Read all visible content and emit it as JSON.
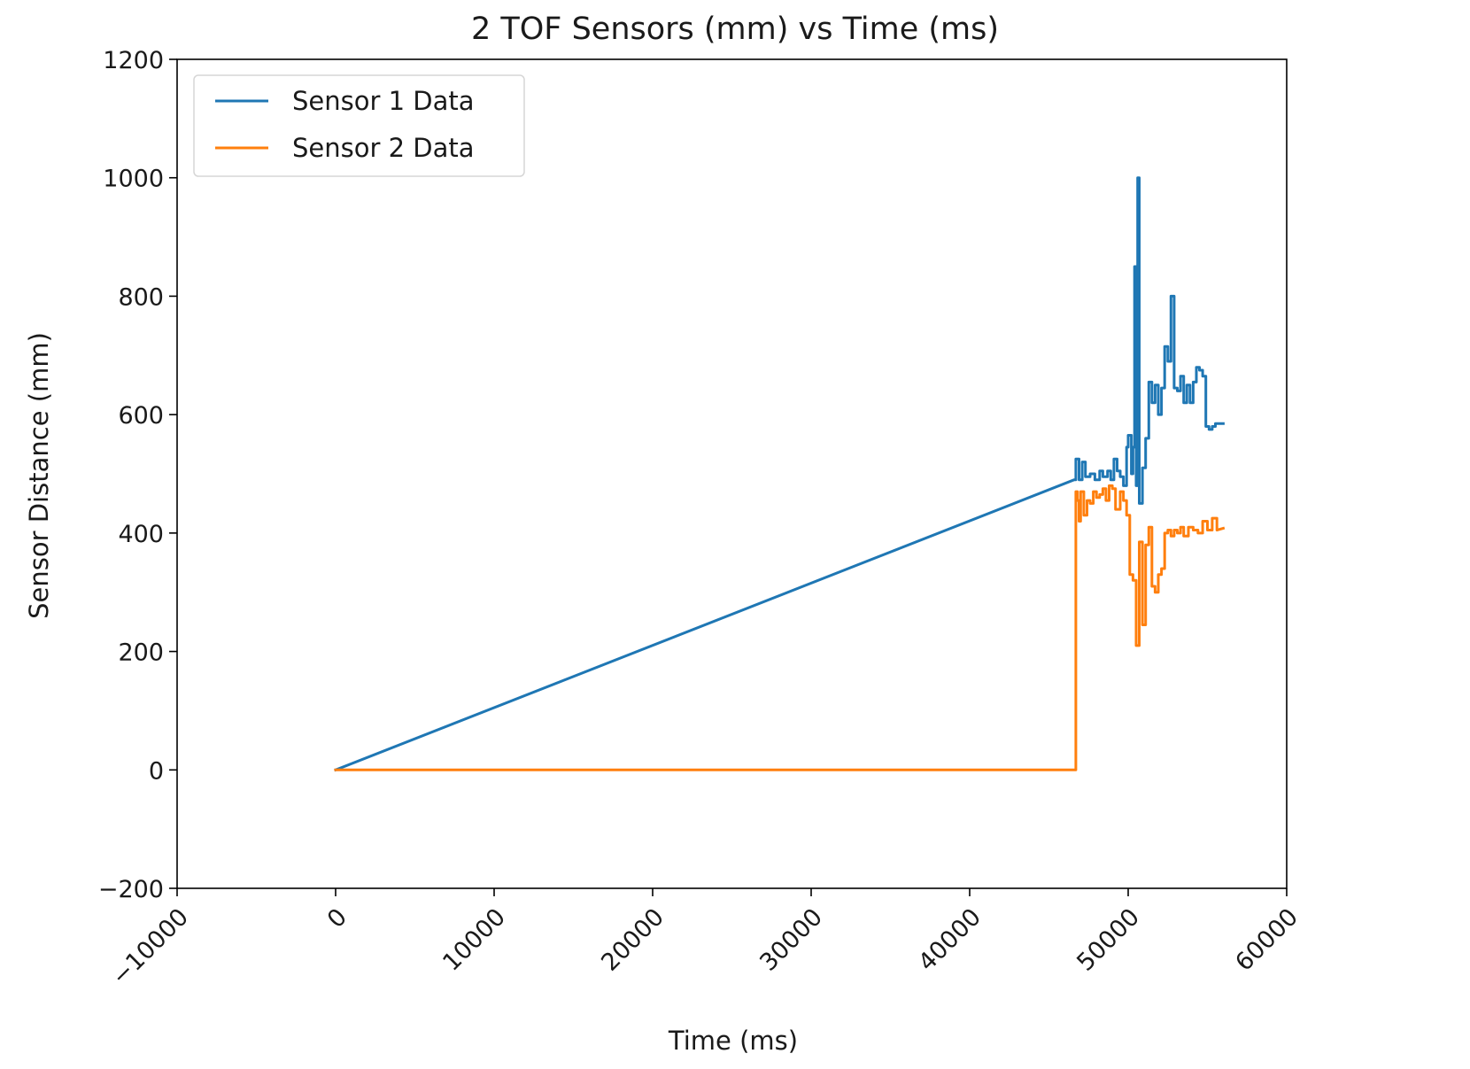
{
  "chart_data": {
    "type": "line",
    "title": "2 TOF Sensors (mm) vs Time (ms)",
    "xlabel": "Time (ms)",
    "ylabel": "Sensor Distance (mm)",
    "xlim": [
      -10000,
      60000
    ],
    "ylim": [
      -200,
      1200
    ],
    "xticks": [
      -10000,
      0,
      10000,
      20000,
      30000,
      40000,
      50000,
      60000
    ],
    "xtick_labels": [
      "−10000",
      "0",
      "10000",
      "20000",
      "30000",
      "40000",
      "50000",
      "60000"
    ],
    "yticks": [
      -200,
      0,
      200,
      400,
      600,
      800,
      1000,
      1200
    ],
    "ytick_labels": [
      "−200",
      "0",
      "200",
      "400",
      "600",
      "800",
      "1000",
      "1200"
    ],
    "grid": false,
    "legend_position": "top-left",
    "series": [
      {
        "name": "Sensor 1 Data",
        "color": "#1f77b4",
        "x": [
          0,
          46600,
          46700,
          46700,
          46900,
          46900,
          47100,
          47100,
          47300,
          47300,
          47600,
          47600,
          47900,
          47900,
          48200,
          48200,
          48400,
          48400,
          48700,
          48700,
          48900,
          48900,
          49100,
          49100,
          49300,
          49300,
          49500,
          49500,
          49700,
          49700,
          49900,
          49900,
          50000,
          50000,
          50200,
          50200,
          50300,
          50300,
          50400,
          50400,
          50500,
          50500,
          50600,
          50600,
          50700,
          50700,
          50900,
          50900,
          51100,
          51100,
          51300,
          51300,
          51500,
          51500,
          51700,
          51700,
          51900,
          51900,
          52100,
          52100,
          52300,
          52300,
          52500,
          52500,
          52700,
          52700,
          52900,
          52900,
          53100,
          53100,
          53300,
          53300,
          53500,
          53500,
          53700,
          53700,
          53900,
          53900,
          54100,
          54100,
          54300,
          54300,
          54500,
          54500,
          54700,
          54700,
          54900,
          54900,
          55100,
          55100,
          55300,
          55300,
          55500,
          55500,
          56000
        ],
        "y": [
          0,
          490,
          490,
          525,
          525,
          490,
          490,
          520,
          520,
          495,
          495,
          500,
          500,
          490,
          490,
          505,
          505,
          495,
          495,
          505,
          505,
          490,
          490,
          525,
          525,
          505,
          505,
          495,
          495,
          480,
          480,
          545,
          545,
          565,
          565,
          500,
          500,
          545,
          545,
          850,
          850,
          480,
          480,
          1000,
          1000,
          450,
          450,
          510,
          510,
          560,
          560,
          655,
          655,
          620,
          620,
          650,
          650,
          600,
          600,
          645,
          645,
          715,
          715,
          690,
          690,
          800,
          800,
          645,
          645,
          640,
          640,
          665,
          665,
          620,
          620,
          650,
          650,
          620,
          620,
          655,
          655,
          680,
          680,
          675,
          675,
          665,
          665,
          580,
          580,
          575,
          575,
          580,
          580,
          585,
          585
        ]
      },
      {
        "name": "Sensor 2 Data",
        "color": "#ff7f0e",
        "x": [
          0,
          46100,
          46700,
          46700,
          46800,
          46800,
          46900,
          46900,
          47000,
          47000,
          47200,
          47200,
          47400,
          47400,
          47600,
          47600,
          47800,
          47800,
          48000,
          48000,
          48200,
          48200,
          48400,
          48400,
          48600,
          48600,
          48800,
          48800,
          49000,
          49000,
          49200,
          49200,
          49500,
          49500,
          49700,
          49700,
          49900,
          49900,
          50100,
          50100,
          50300,
          50300,
          50500,
          50500,
          50700,
          50700,
          50900,
          50900,
          51100,
          51100,
          51300,
          51300,
          51500,
          51500,
          51700,
          51700,
          51900,
          51900,
          52100,
          52100,
          52300,
          52300,
          52500,
          52500,
          52700,
          52700,
          52900,
          52900,
          53100,
          53100,
          53300,
          53300,
          53500,
          53500,
          53800,
          53800,
          54100,
          54100,
          54400,
          54400,
          54700,
          54700,
          55000,
          55000,
          55300,
          55300,
          55600,
          55600,
          56000
        ],
        "y": [
          0,
          0,
          0,
          470,
          470,
          455,
          455,
          420,
          420,
          470,
          470,
          430,
          430,
          455,
          455,
          450,
          450,
          470,
          470,
          460,
          460,
          465,
          465,
          475,
          475,
          455,
          455,
          480,
          480,
          475,
          475,
          440,
          440,
          470,
          470,
          455,
          455,
          430,
          430,
          330,
          330,
          320,
          320,
          210,
          210,
          385,
          385,
          245,
          245,
          380,
          380,
          410,
          410,
          310,
          310,
          300,
          300,
          330,
          330,
          340,
          340,
          400,
          400,
          405,
          405,
          395,
          395,
          405,
          405,
          400,
          400,
          410,
          410,
          395,
          395,
          410,
          410,
          405,
          405,
          400,
          400,
          420,
          420,
          405,
          405,
          425,
          425,
          405,
          408
        ]
      }
    ]
  }
}
